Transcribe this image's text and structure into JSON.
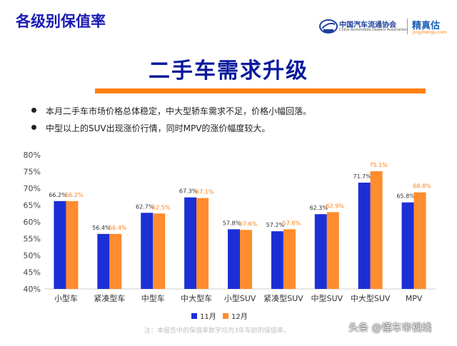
{
  "header": {
    "title": "各级别保值率"
  },
  "logo": {
    "association_cn": "中国汽车流通协会",
    "association_en": "China Automobile Dealers Association",
    "brand": "精真估",
    "brand_url": "jingzhengu.com"
  },
  "main_title": "二手车需求升级",
  "bullets": [
    "本月二手车市场价格总体稳定，中大型轿车需求不足，价格小幅回落。",
    "中型以上的SUV出现涨价行情，同时MPV的涨价幅度较大。"
  ],
  "footnote": "注：本报告中的保值率数字均为3年车龄的保值率。",
  "watermark": "头条 @懂车帝视线",
  "colors": {
    "title_blue": "#1a1ab4",
    "accent_orange": "#ff7f0e",
    "series_nov": "#1c2fd6",
    "series_dec": "#ff8c2e"
  },
  "chart_data": {
    "type": "bar",
    "categories": [
      "小型车",
      "紧凑型车",
      "中型车",
      "中大型车",
      "小型SUV",
      "紧凑型SUV",
      "中型SUV",
      "中大型SUV",
      "MPV"
    ],
    "series": [
      {
        "name": "11月",
        "color": "#1c2fd6",
        "values": [
          66.2,
          56.4,
          62.7,
          67.3,
          57.8,
          57.2,
          62.3,
          71.7,
          65.8
        ],
        "labels": [
          "66.2%",
          "56.4%",
          "62.7%",
          "67.3%",
          "57.8%",
          "57.2%",
          "62.3%",
          "71.7%",
          "65.8%"
        ]
      },
      {
        "name": "12月",
        "color": "#ff8c2e",
        "values": [
          66.2,
          56.4,
          62.5,
          67.1,
          57.6,
          57.8,
          62.9,
          75.1,
          68.8
        ],
        "labels": [
          "66.2%",
          "56.4%",
          "62.5%",
          "67.1%",
          "57.6%",
          "57.8%",
          "62.9%",
          "75.1%",
          "68.8%"
        ]
      }
    ],
    "yticks": [
      "40%",
      "45%",
      "50%",
      "55%",
      "60%",
      "65%",
      "70%",
      "75%",
      "80%"
    ],
    "ylim": [
      40,
      80
    ],
    "legend": "bottom",
    "grid": false
  }
}
